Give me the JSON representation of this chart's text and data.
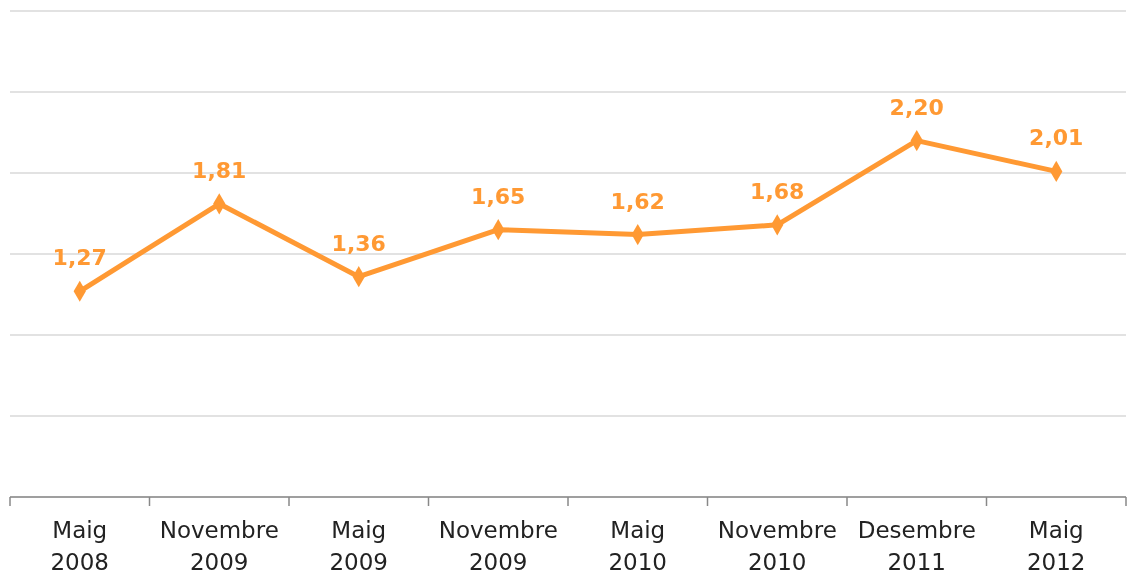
{
  "chart_data": {
    "type": "line",
    "categories": [
      "Maig 2008",
      "Novembre 2009",
      "Maig 2009",
      "Novembre 2009",
      "Maig 2010",
      "Novembre 2010",
      "Desembre 2011",
      "Maig 2012"
    ],
    "series": [
      {
        "color": "#ff9933",
        "values": [
          1.27,
          1.81,
          1.36,
          1.65,
          1.62,
          1.68,
          2.2,
          2.01
        ],
        "value_labels": [
          "1,27",
          "1,81",
          "1,36",
          "1,65",
          "1,62",
          "1,68",
          "2,20",
          "2,01"
        ]
      }
    ],
    "ylim": [
      0,
      3
    ],
    "yticks": [
      {
        "value": 0,
        "label": null
      },
      {
        "value": 0.5,
        "label": null
      },
      {
        "value": 1,
        "label": null
      },
      {
        "value": 1.5,
        "label": null
      },
      {
        "value": 2,
        "label": null
      },
      {
        "value": 2.5,
        "label": null
      },
      {
        "value": 3,
        "label": null
      }
    ],
    "tick_labels": "x",
    "grid": "y",
    "marker": "diamond",
    "line_style": "solid"
  }
}
